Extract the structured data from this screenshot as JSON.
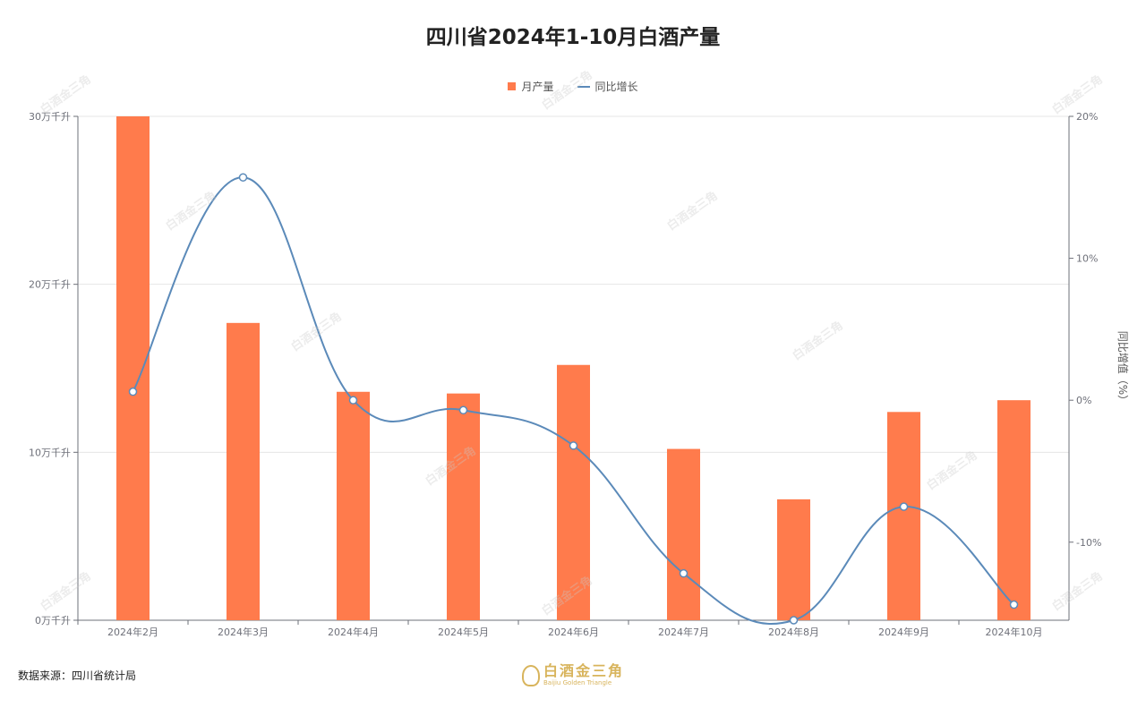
{
  "chart_data": {
    "type": "bar",
    "title": "四川省2024年1-10月白酒产量",
    "categories": [
      "2024年2月",
      "2024年3月",
      "2024年4月",
      "2024年5月",
      "2024年6月",
      "2024年7月",
      "2024年8月",
      "2024年9月",
      "2024年10月"
    ],
    "series": [
      {
        "name": "月产量",
        "type": "bar",
        "axis": "left",
        "values": [
          30.0,
          17.7,
          13.6,
          13.5,
          15.2,
          10.2,
          7.2,
          12.4,
          13.1
        ]
      },
      {
        "name": "同比增长",
        "type": "line",
        "axis": "right",
        "values": [
          0.6,
          15.7,
          0.0,
          -0.7,
          -3.2,
          -12.2,
          -15.5,
          -7.5,
          -14.4
        ]
      }
    ],
    "y_left": {
      "range": [
        0,
        30
      ],
      "ticks": [
        "0万千升",
        "10万千升",
        "20万千升",
        "30万千升"
      ],
      "tick_values": [
        0,
        10,
        20,
        30
      ]
    },
    "y_right": {
      "range": [
        -15.5,
        20
      ],
      "ticks": [
        "-10%",
        "0%",
        "10%",
        "20%"
      ],
      "tick_values": [
        -10,
        0,
        10,
        20
      ],
      "label": "同比增值（%）"
    },
    "grid": true,
    "legend_position": "top-center",
    "colors": {
      "bar": "#ff7b4c",
      "line": "#5b8ab9"
    }
  },
  "footer": {
    "source": "数据来源：四川省统计局",
    "logo_cn": "白酒金三角",
    "logo_en": "Baijiu Golden Triangle"
  },
  "watermark_text": "白酒金三角"
}
